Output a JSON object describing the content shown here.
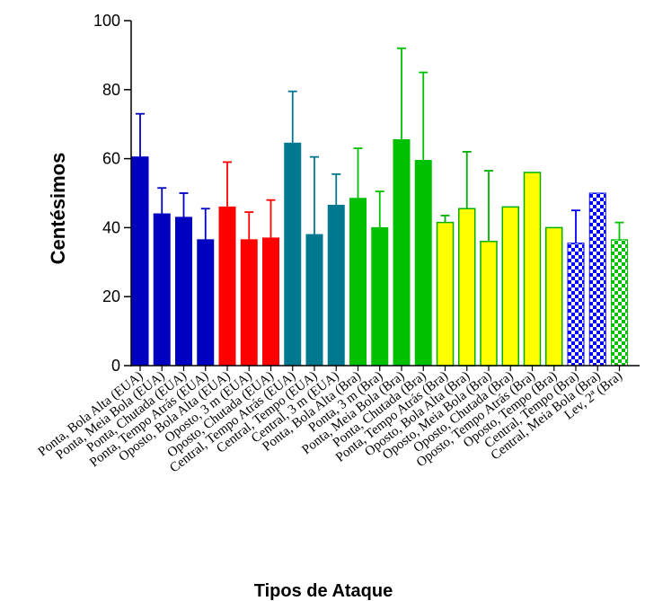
{
  "chart_data": {
    "type": "bar",
    "title": "",
    "xlabel": "Tipos de Ataque",
    "ylabel": "Centésimos",
    "ylim": [
      0,
      100
    ],
    "yticks": [
      "0",
      "20",
      "40",
      "60",
      "80",
      "100"
    ],
    "grid": false,
    "legend": "none",
    "categories": [
      "Ponta, Bola Alta (EUA)",
      "Ponta, Meia Bola (EUA)",
      "Ponta, Chutada (EUA)",
      "Ponta, Tempo Atrás (EUA)",
      "Oposto, Bola Alta (EUA)",
      "Oposto, 3 m (EUA)",
      "Oposto, Chutada (EUA)",
      "Central, Tempo Atrás (EUA)",
      "Central, Tempo (EUA)",
      "Central, 3 m (EUA)",
      "Ponta, Bola Alta (Bra)",
      "Ponta, 3 m (Bra)",
      "Ponta, Meia Bola (Bra)",
      "Ponta, Chutada (Bra)",
      "Ponta, Tempo Atrás (Bra)",
      "Oposto, Bola Alta (Bra)",
      "Oposto, Meia Bola (Bra)",
      "Oposto, Chutada (Bra)",
      "Oposto, Tempo Atrás (Bra)",
      "Oposto, Tempo (Bra)",
      "Central, Tempo (Bra)",
      "Central, Meia Bola (Bra)",
      "Lev, 2ª (Bra)"
    ],
    "values": [
      60.5,
      44,
      43,
      36.5,
      46,
      36.5,
      37,
      64.5,
      38,
      46.5,
      48.5,
      40,
      65.5,
      59.5,
      41.5,
      45.5,
      36,
      46,
      56,
      40,
      35.5,
      50,
      36.5
    ],
    "errors": [
      12.5,
      7.5,
      7,
      9,
      13,
      8,
      11,
      15,
      22.5,
      9,
      14.5,
      10.5,
      26.5,
      25.5,
      2,
      16.5,
      20.5,
      0,
      0,
      0,
      9.5,
      0,
      5
    ],
    "colors": [
      "#0000c0",
      "#0000c0",
      "#0000c0",
      "#0000c0",
      "#ff0000",
      "#ff0000",
      "#ff0000",
      "#007890",
      "#007890",
      "#007890",
      "#00c000",
      "#00c000",
      "#00c000",
      "#00c000",
      "#ffff00",
      "#ffff00",
      "#ffff00",
      "#ffff00",
      "#ffff00",
      "#ffff00",
      "#0000ff",
      "#0000ff",
      "#00c000"
    ],
    "checkered": [
      false,
      false,
      false,
      false,
      false,
      false,
      false,
      false,
      false,
      false,
      false,
      false,
      false,
      false,
      false,
      false,
      false,
      false,
      false,
      false,
      true,
      true,
      true
    ]
  }
}
